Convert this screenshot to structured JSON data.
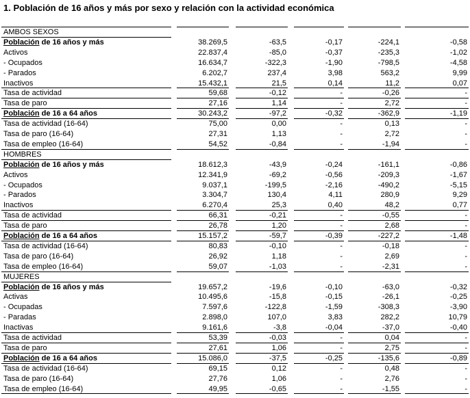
{
  "title": "1. Población de 16 años y más por sexo y relación con la actividad económica",
  "sections": [
    {
      "name": "AMBOS SEXOS",
      "rows": [
        {
          "label_u": "Población",
          "label_rest": " de 16 años y más",
          "bold": true,
          "border": false,
          "values": [
            "38.269,5",
            "-63,5",
            "-0,17",
            "-224,1",
            "-0,58"
          ]
        },
        {
          "label": "Activos",
          "border": false,
          "values": [
            "22.837,4",
            "-85,0",
            "-0,37",
            "-235,3",
            "-1,02"
          ]
        },
        {
          "label": "- Ocupados",
          "border": false,
          "values": [
            "16.634,7",
            "-322,3",
            "-1,90",
            "-798,5",
            "-4,58"
          ]
        },
        {
          "label": "- Parados",
          "border": false,
          "values": [
            "6.202,7",
            "237,4",
            "3,98",
            "563,2",
            "9,99"
          ]
        },
        {
          "label": "Inactivos",
          "border": true,
          "values": [
            "15.432,1",
            "21,5",
            "0,14",
            "11,2",
            "0,07"
          ]
        },
        {
          "label": "Tasa de actividad",
          "border": true,
          "values": [
            "59,68",
            "-0,12",
            "-",
            "-0,26",
            "-"
          ]
        },
        {
          "label": "Tasa de paro",
          "border": true,
          "values": [
            "27,16",
            "1,14",
            "-",
            "2,72",
            "-"
          ]
        },
        {
          "label_u": "Población",
          "label_rest": " de 16 a 64 años",
          "bold": true,
          "border": true,
          "values": [
            "30.243,2",
            "-97,2",
            "-0,32",
            "-362,9",
            "-1,19"
          ]
        },
        {
          "label": "Tasa de actividad (16-64)",
          "border": false,
          "values": [
            "75,00",
            "0,00",
            "-",
            "0,13",
            "-"
          ]
        },
        {
          "label": "Tasa de paro (16-64)",
          "border": false,
          "values": [
            "27,31",
            "1,13",
            "-",
            "2,72",
            "-"
          ]
        },
        {
          "label": "Tasa de empleo (16-64)",
          "border": true,
          "values": [
            "54,52",
            "-0,84",
            "-",
            "-1,94",
            "-"
          ]
        }
      ]
    },
    {
      "name": "HOMBRES",
      "rows": [
        {
          "label_u": "Población",
          "label_rest": " de 16 años y más",
          "bold": true,
          "border": false,
          "values": [
            "18.612,3",
            "-43,9",
            "-0,24",
            "-161,1",
            "-0,86"
          ]
        },
        {
          "label": "Activos",
          "border": false,
          "values": [
            "12.341,9",
            "-69,2",
            "-0,56",
            "-209,3",
            "-1,67"
          ]
        },
        {
          "label": "- Ocupados",
          "border": false,
          "values": [
            "9.037,1",
            "-199,5",
            "-2,16",
            "-490,2",
            "-5,15"
          ]
        },
        {
          "label": "- Parados",
          "border": false,
          "values": [
            "3.304,7",
            "130,4",
            "4,11",
            "280,9",
            "9,29"
          ]
        },
        {
          "label": "Inactivos",
          "border": true,
          "values": [
            "6.270,4",
            "25,3",
            "0,40",
            "48,2",
            "0,77"
          ]
        },
        {
          "label": "Tasa de actividad",
          "border": true,
          "values": [
            "66,31",
            "-0,21",
            "-",
            "-0,55",
            "-"
          ]
        },
        {
          "label": "Tasa de paro",
          "border": true,
          "values": [
            "26,78",
            "1,20",
            "-",
            "2,68",
            "-"
          ]
        },
        {
          "label_u": "Población",
          "label_rest": " de 16 a 64 años",
          "bold": true,
          "border": true,
          "values": [
            "15.157,2",
            "-59,7",
            "-0,39",
            "-227,2",
            "-1,48"
          ]
        },
        {
          "label": "Tasa de actividad (16-64)",
          "border": false,
          "values": [
            "80,83",
            "-0,10",
            "-",
            "-0,18",
            "-"
          ]
        },
        {
          "label": "Tasa de paro (16-64)",
          "border": false,
          "values": [
            "26,92",
            "1,18",
            "-",
            "2,69",
            "-"
          ]
        },
        {
          "label": "Tasa de empleo (16-64)",
          "border": true,
          "values": [
            "59,07",
            "-1,03",
            "-",
            "-2,31",
            "-"
          ]
        }
      ]
    },
    {
      "name": "MUJERES",
      "rows": [
        {
          "label_u": "Población",
          "label_rest": " de 16 años y más",
          "bold": true,
          "border": false,
          "values": [
            "19.657,2",
            "-19,6",
            "-0,10",
            "-63,0",
            "-0,32"
          ]
        },
        {
          "label": "Activas",
          "border": false,
          "values": [
            "10.495,6",
            "-15,8",
            "-0,15",
            "-26,1",
            "-0,25"
          ]
        },
        {
          "label": "- Ocupadas",
          "border": false,
          "values": [
            "7.597,6",
            "-122,8",
            "-1,59",
            "-308,3",
            "-3,90"
          ]
        },
        {
          "label": "- Paradas",
          "border": false,
          "values": [
            "2.898,0",
            "107,0",
            "3,83",
            "282,2",
            "10,79"
          ]
        },
        {
          "label": "Inactivas",
          "border": true,
          "values": [
            "9.161,6",
            "-3,8",
            "-0,04",
            "-37,0",
            "-0,40"
          ]
        },
        {
          "label": "Tasa de actividad",
          "border": true,
          "values": [
            "53,39",
            "-0,03",
            "-",
            "0,04",
            "-"
          ]
        },
        {
          "label": "Tasa de paro",
          "border": true,
          "values": [
            "27,61",
            "1,06",
            "-",
            "2,75",
            "-"
          ]
        },
        {
          "label_u": "Población",
          "label_rest": " de 16 a 64 años",
          "bold": true,
          "border": true,
          "values": [
            "15.086,0",
            "-37,5",
            "-0,25",
            "-135,6",
            "-0,89"
          ]
        },
        {
          "label": "Tasa de actividad (16-64)",
          "border": false,
          "values": [
            "69,15",
            "0,12",
            "-",
            "0,48",
            "-"
          ]
        },
        {
          "label": "Tasa de paro (16-64)",
          "border": false,
          "values": [
            "27,76",
            "1,06",
            "-",
            "2,76",
            "-"
          ]
        },
        {
          "label": "Tasa de empleo (16-64)",
          "border": true,
          "values": [
            "49,95",
            "-0,65",
            "-",
            "-1,55",
            "-"
          ]
        }
      ]
    }
  ]
}
